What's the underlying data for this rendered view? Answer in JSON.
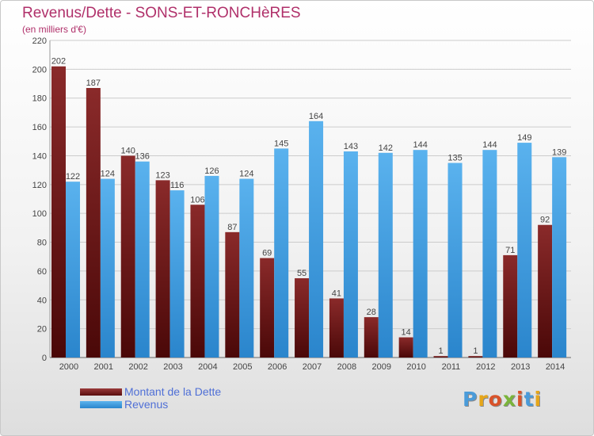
{
  "header": {
    "title": "Revenus/Dette - SONS-ET-RONCHèRES",
    "subtitle": "(en milliers d'€)"
  },
  "chart_data": {
    "type": "bar",
    "categories": [
      "2000",
      "2001",
      "2002",
      "2003",
      "2004",
      "2005",
      "2006",
      "2007",
      "2008",
      "2009",
      "2010",
      "2011",
      "2012",
      "2013",
      "2014"
    ],
    "series": [
      {
        "name": "Montant de la Dette",
        "color": "#7a1f1f",
        "values": [
          202,
          187,
          140,
          123,
          106,
          87,
          69,
          55,
          41,
          28,
          14,
          1,
          1,
          71,
          92
        ]
      },
      {
        "name": "Revenus",
        "color": "#3e9ce0",
        "values": [
          122,
          124,
          136,
          116,
          126,
          124,
          145,
          164,
          143,
          142,
          144,
          135,
          144,
          149,
          139
        ]
      }
    ],
    "ylim": [
      0,
      220
    ],
    "yticks": [
      0,
      20,
      40,
      60,
      80,
      100,
      120,
      140,
      160,
      180,
      200,
      220
    ],
    "grid": true,
    "data_labels": true,
    "legend_position": "bottom-left"
  },
  "legend": {
    "items": [
      {
        "label": "Montant de la Dette",
        "color": "#7a1f1f"
      },
      {
        "label": "Revenus",
        "color": "#3e9ce0"
      }
    ]
  },
  "logo": {
    "text": "Proxiti"
  }
}
